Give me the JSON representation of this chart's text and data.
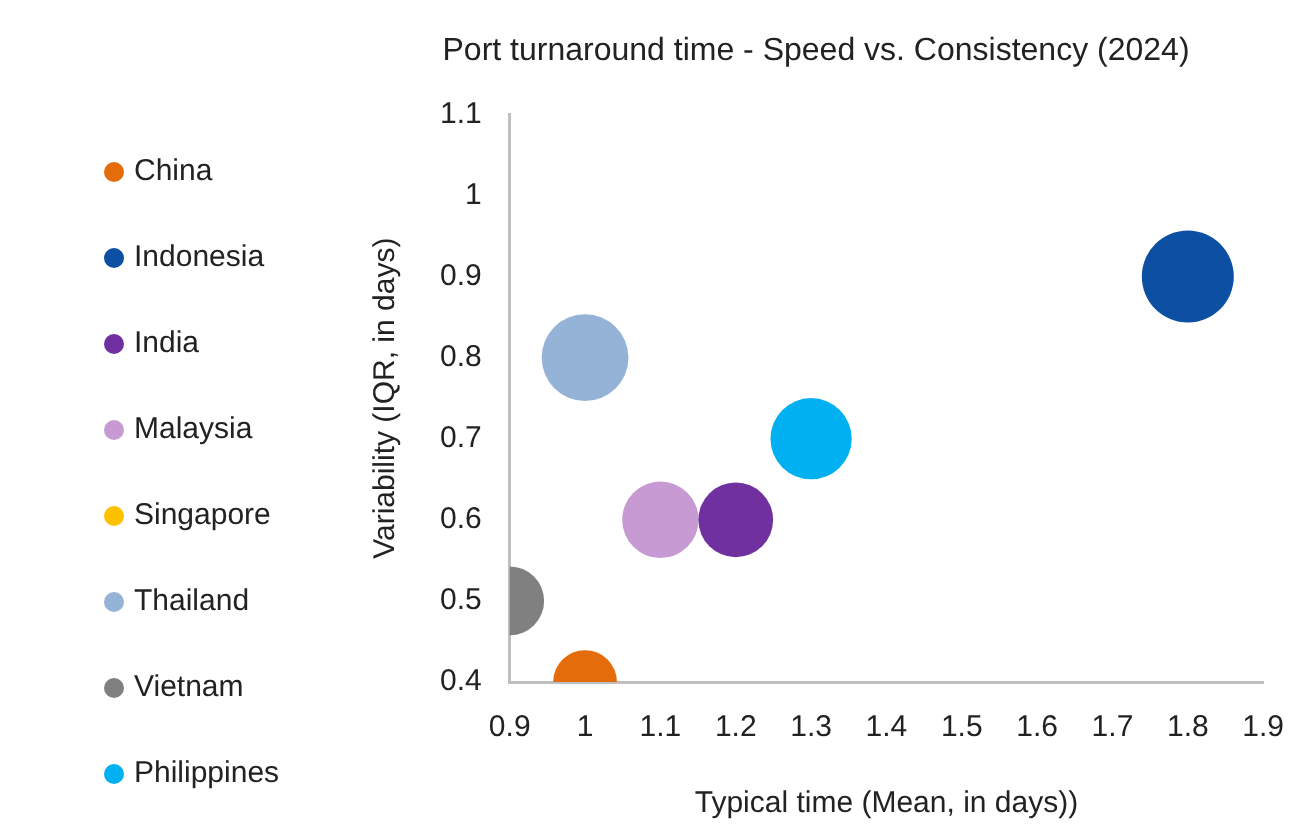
{
  "chart_data": {
    "type": "bubble",
    "title": "Port turnaround time - Speed vs. Consistency (2024)",
    "xlabel": "Typical time (Mean, in days))",
    "ylabel": "Variability (IQR, in days)",
    "xlim": [
      0.9,
      1.9
    ],
    "xticks": [
      0.9,
      1,
      1.1,
      1.2,
      1.3,
      1.4,
      1.5,
      1.6,
      1.7,
      1.8,
      1.9
    ],
    "ylim": [
      0.4,
      1.1
    ],
    "yticks": [
      0.4,
      0.5,
      0.6,
      0.7,
      0.8,
      0.9,
      1,
      1.1
    ],
    "grid": false,
    "legend": "left",
    "series": [
      {
        "name": "China",
        "color": "#e46c0a",
        "x": [
          1
        ],
        "values": [
          0.4
        ],
        "sizes": [
          0.48
        ]
      },
      {
        "name": "Indonesia",
        "color": "#0d4fa3",
        "x": [
          1.8
        ],
        "values": [
          0.9
        ],
        "sizes": [
          1
        ]
      },
      {
        "name": "India",
        "color": "#7030a0",
        "x": [
          1.2
        ],
        "values": [
          0.6
        ],
        "sizes": [
          0.66
        ]
      },
      {
        "name": "Malaysia",
        "color": "#c89ad4",
        "x": [
          1.1
        ],
        "values": [
          0.6
        ],
        "sizes": [
          0.69
        ]
      },
      {
        "name": "Singapore",
        "color": "#ffc000",
        "x": [
          null
        ],
        "values": [
          null
        ],
        "sizes": [
          null
        ]
      },
      {
        "name": "Thailand",
        "color": "#95b3d7",
        "x": [
          1
        ],
        "values": [
          0.8
        ],
        "sizes": [
          0.89
        ]
      },
      {
        "name": "Vietnam",
        "color": "#808080",
        "x": [
          0.9
        ],
        "values": [
          0.5
        ],
        "sizes": [
          0.56
        ]
      },
      {
        "name": "Philippines",
        "color": "#00b0f0",
        "x": [
          1.3
        ],
        "values": [
          0.7
        ],
        "sizes": [
          0.78
        ]
      }
    ]
  }
}
